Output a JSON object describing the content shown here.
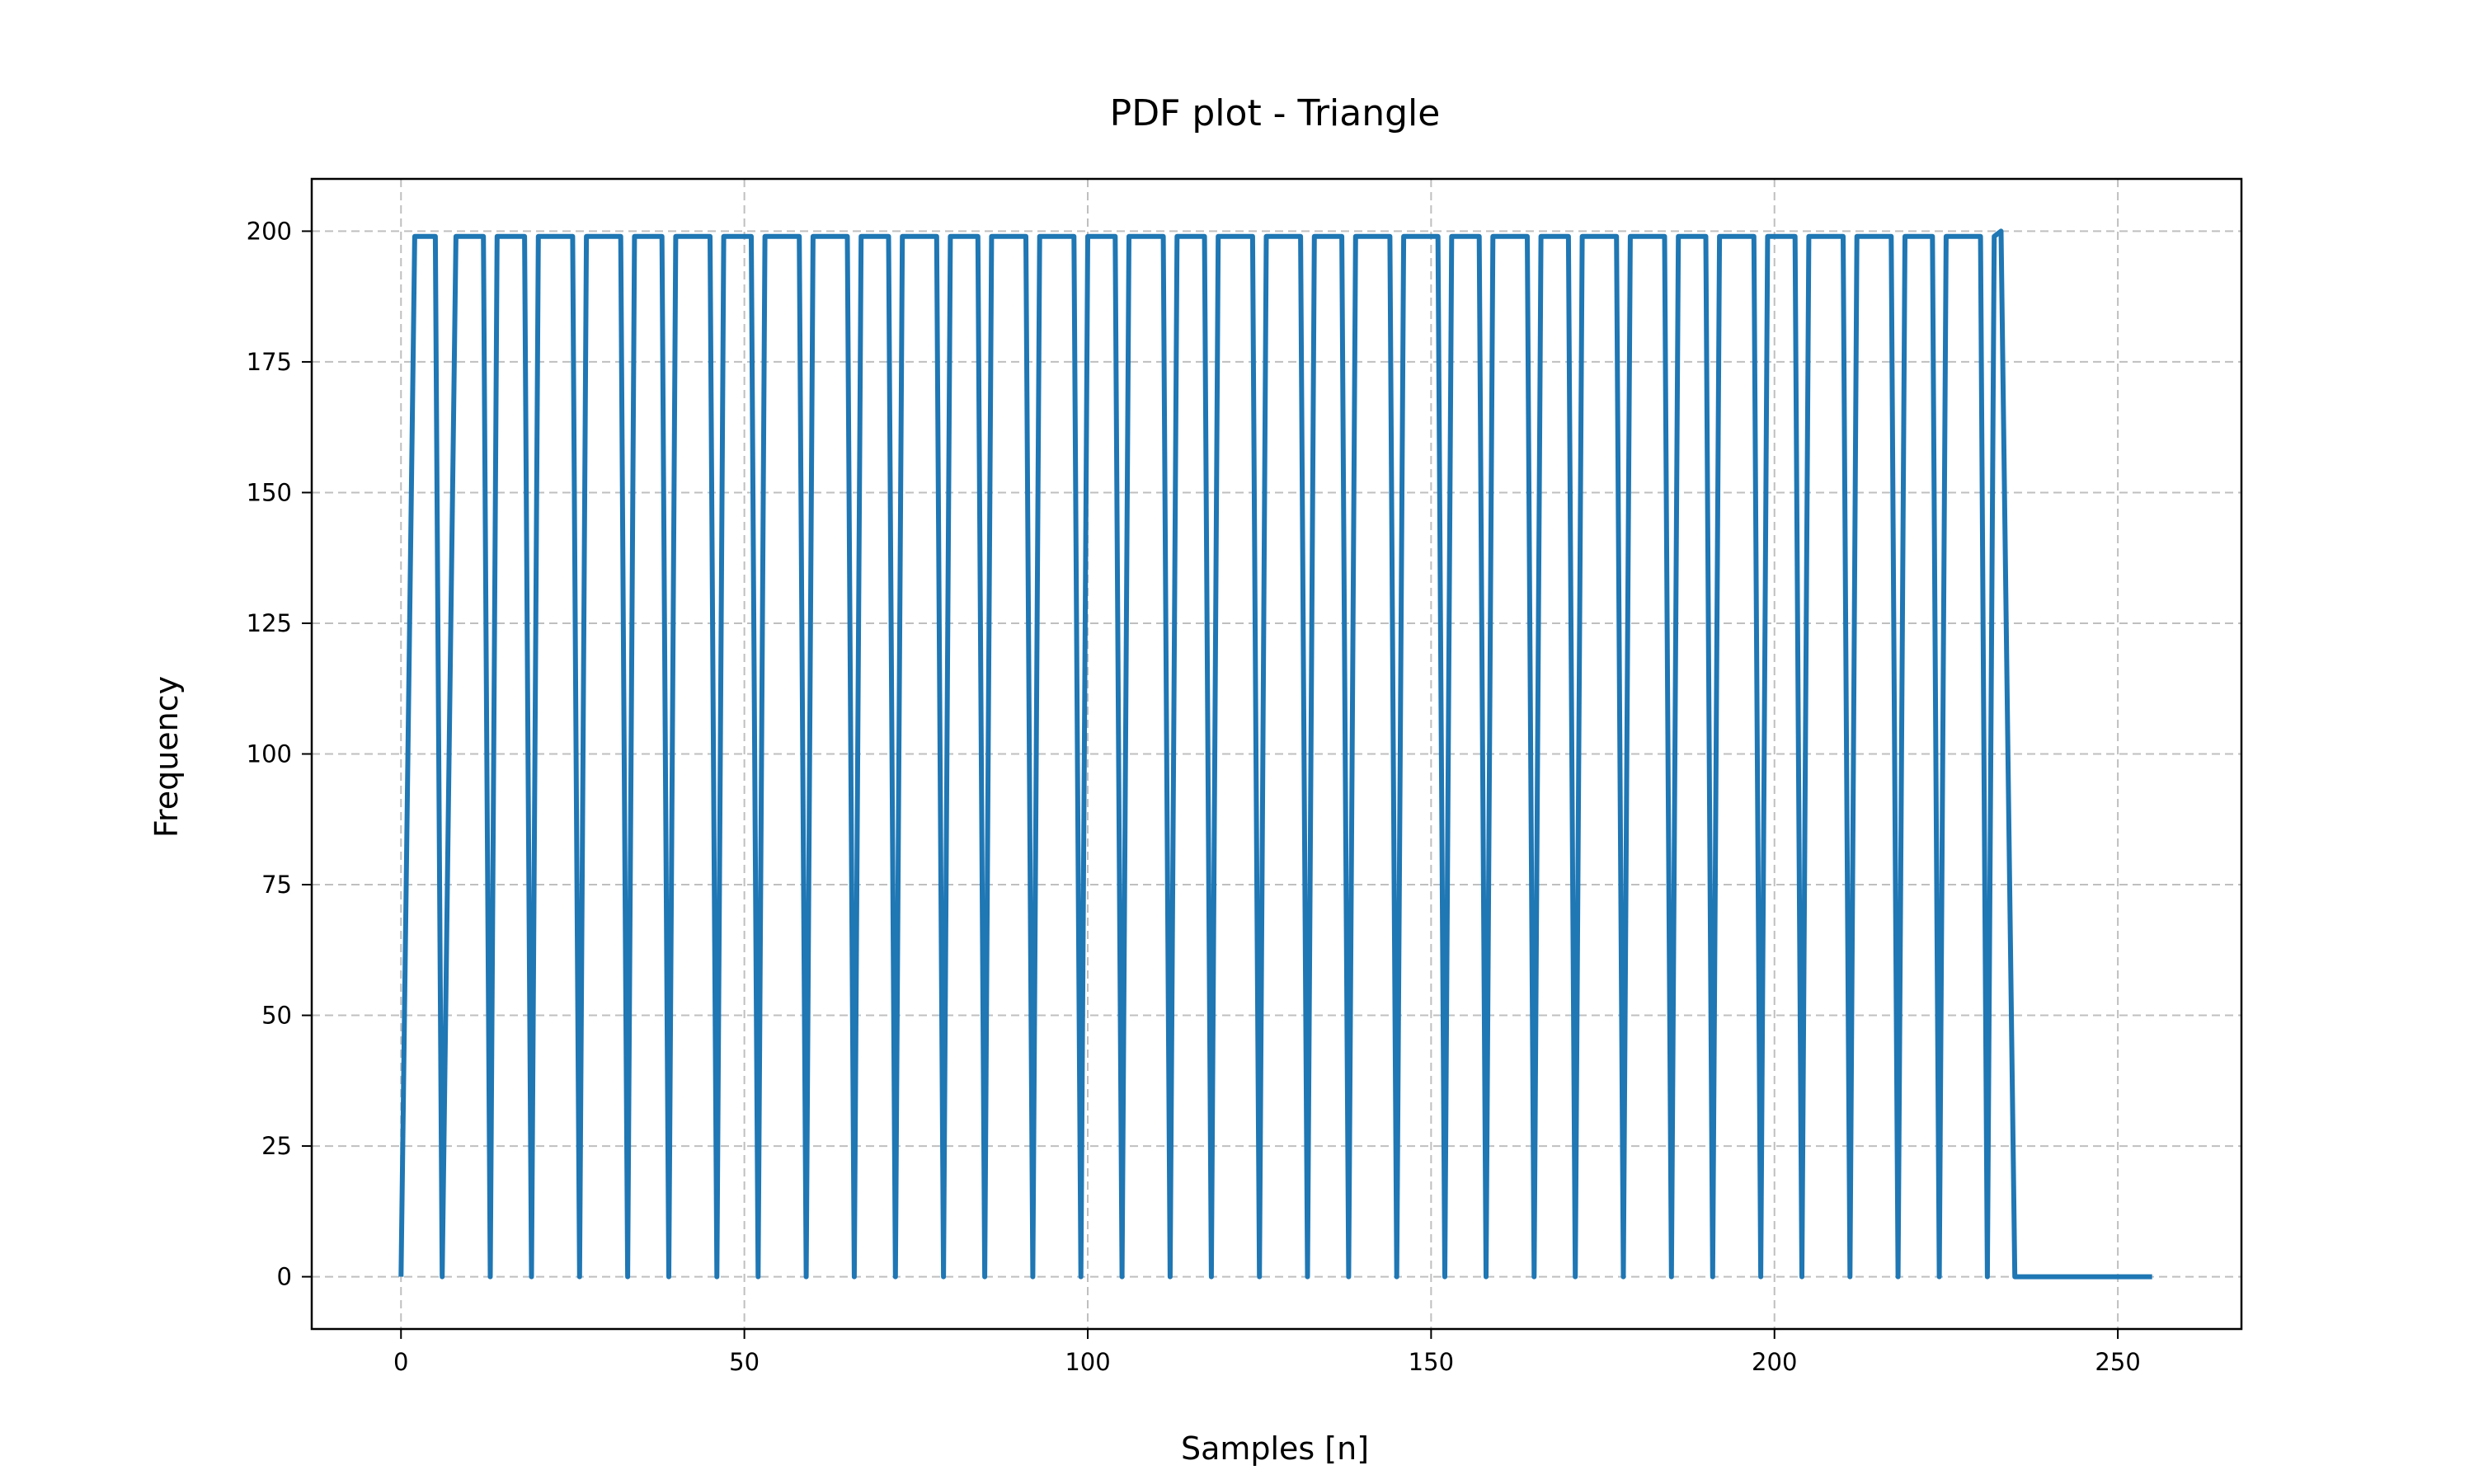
{
  "chart_data": {
    "type": "line",
    "title": "PDF plot - Triangle",
    "xlabel": "Samples [n]",
    "ylabel": "Frequency",
    "xlim": [
      -13,
      268
    ],
    "ylim": [
      -10,
      210
    ],
    "xticks": [
      0,
      50,
      100,
      150,
      200,
      250
    ],
    "yticks": [
      0,
      25,
      50,
      75,
      100,
      125,
      150,
      175,
      200
    ],
    "grid": true,
    "series": [
      {
        "color": "#1f77b4",
        "x": [
          0,
          2,
          5,
          6,
          8,
          12,
          13,
          14,
          18,
          19,
          20,
          25,
          26,
          27,
          32,
          33,
          34,
          38,
          39,
          40,
          45,
          46,
          47,
          51,
          52,
          53,
          58,
          59,
          60,
          65,
          66,
          67,
          71,
          72,
          73,
          78,
          79,
          80,
          84,
          85,
          86,
          91,
          92,
          93,
          98,
          99,
          100,
          104,
          105,
          106,
          111,
          112,
          113,
          117,
          118,
          119,
          124,
          125,
          126,
          131,
          132,
          133,
          137,
          138,
          139,
          144,
          145,
          146,
          151,
          152,
          153,
          157,
          158,
          159,
          164,
          165,
          166,
          170,
          171,
          172,
          177,
          178,
          179,
          184,
          185,
          186,
          190,
          191,
          192,
          197,
          198,
          199,
          203,
          204,
          205,
          210,
          211,
          212,
          217,
          218,
          219,
          223,
          224,
          225,
          230,
          231,
          232,
          233,
          235,
          255
        ],
        "y": [
          0,
          199,
          199,
          0,
          199,
          199,
          0,
          199,
          199,
          0,
          199,
          199,
          0,
          199,
          199,
          0,
          199,
          199,
          0,
          199,
          199,
          0,
          199,
          199,
          0,
          199,
          199,
          0,
          199,
          199,
          0,
          199,
          199,
          0,
          199,
          199,
          0,
          199,
          199,
          0,
          199,
          199,
          0,
          199,
          199,
          0,
          199,
          199,
          0,
          199,
          199,
          0,
          199,
          199,
          0,
          199,
          199,
          0,
          199,
          199,
          0,
          199,
          199,
          0,
          199,
          199,
          0,
          199,
          199,
          0,
          199,
          199,
          0,
          199,
          199,
          0,
          199,
          199,
          0,
          199,
          199,
          0,
          199,
          199,
          0,
          199,
          199,
          0,
          199,
          199,
          0,
          199,
          199,
          0,
          199,
          199,
          0,
          199,
          199,
          0,
          199,
          199,
          0,
          199,
          199,
          0,
          199,
          200,
          0,
          0
        ]
      }
    ]
  }
}
